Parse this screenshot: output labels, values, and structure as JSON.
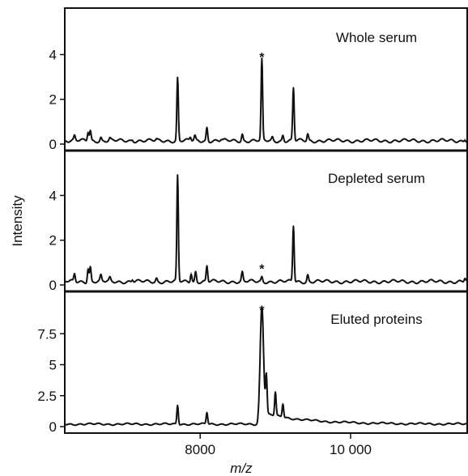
{
  "chart_data": {
    "type": "line",
    "xlabel": "m/z",
    "ylabel": "Intensity",
    "xlim": [
      6200,
      11550
    ],
    "x_ticks": [
      {
        "value": 8000,
        "label": "8000"
      },
      {
        "value": 10000,
        "label": "10 000"
      }
    ],
    "panels": [
      {
        "label": "Whole serum",
        "ylim": [
          0,
          5.5
        ],
        "y_ticks": [
          {
            "value": 0,
            "label": "0"
          },
          {
            "value": 2,
            "label": "2"
          },
          {
            "value": 4,
            "label": "4"
          }
        ],
        "baseline": 0.15,
        "annotation": {
          "text": "*",
          "x": 8820,
          "y": 3.9
        },
        "peaks": [
          {
            "x": 6330,
            "y": 0.35
          },
          {
            "x": 6510,
            "y": 0.55
          },
          {
            "x": 6540,
            "y": 0.6
          },
          {
            "x": 6680,
            "y": 0.3
          },
          {
            "x": 6800,
            "y": 0.25
          },
          {
            "x": 7100,
            "y": 0.2
          },
          {
            "x": 7420,
            "y": 0.2
          },
          {
            "x": 7700,
            "y": 2.95
          },
          {
            "x": 7870,
            "y": 0.3
          },
          {
            "x": 7930,
            "y": 0.35
          },
          {
            "x": 8090,
            "y": 0.75
          },
          {
            "x": 8280,
            "y": 0.2
          },
          {
            "x": 8560,
            "y": 0.45
          },
          {
            "x": 8820,
            "y": 3.75
          },
          {
            "x": 8960,
            "y": 0.3
          },
          {
            "x": 9100,
            "y": 0.4
          },
          {
            "x": 9240,
            "y": 2.5
          },
          {
            "x": 9430,
            "y": 0.45
          },
          {
            "x": 11520,
            "y": 0.25
          }
        ]
      },
      {
        "label": "Depleted serum",
        "ylim": [
          0,
          5.5
        ],
        "y_ticks": [
          {
            "value": 0,
            "label": "0"
          },
          {
            "value": 2,
            "label": "2"
          },
          {
            "value": 4,
            "label": "4"
          }
        ],
        "baseline": 0.15,
        "annotation": {
          "text": "*",
          "x": 8820,
          "y": 0.75
        },
        "peaks": [
          {
            "x": 6330,
            "y": 0.5
          },
          {
            "x": 6510,
            "y": 0.75
          },
          {
            "x": 6540,
            "y": 0.8
          },
          {
            "x": 6680,
            "y": 0.4
          },
          {
            "x": 6800,
            "y": 0.3
          },
          {
            "x": 7100,
            "y": 0.25
          },
          {
            "x": 7420,
            "y": 0.3
          },
          {
            "x": 7700,
            "y": 4.85
          },
          {
            "x": 7880,
            "y": 0.55
          },
          {
            "x": 7940,
            "y": 0.6
          },
          {
            "x": 8090,
            "y": 0.85
          },
          {
            "x": 8560,
            "y": 0.55
          },
          {
            "x": 8820,
            "y": 0.35
          },
          {
            "x": 9240,
            "y": 2.65
          },
          {
            "x": 9430,
            "y": 0.45
          },
          {
            "x": 11520,
            "y": 0.3
          }
        ]
      },
      {
        "label": "Eluted proteins",
        "ylim": [
          0,
          10
        ],
        "y_ticks": [
          {
            "value": 0,
            "label": "0"
          },
          {
            "value": 2.5,
            "label": "2.5"
          },
          {
            "value": 5,
            "label": "5"
          },
          {
            "value": 7.5,
            "label": "7.5"
          }
        ],
        "baseline": 0.2,
        "annotation": {
          "text": "*",
          "x": 8820,
          "y": 9.45
        },
        "peaks": [
          {
            "x": 7700,
            "y": 1.75
          },
          {
            "x": 8090,
            "y": 1.15
          },
          {
            "x": 8820,
            "y": 8.95
          },
          {
            "x": 8880,
            "y": 3.3
          },
          {
            "x": 9000,
            "y": 2.1
          },
          {
            "x": 9100,
            "y": 1.3
          }
        ]
      }
    ]
  }
}
